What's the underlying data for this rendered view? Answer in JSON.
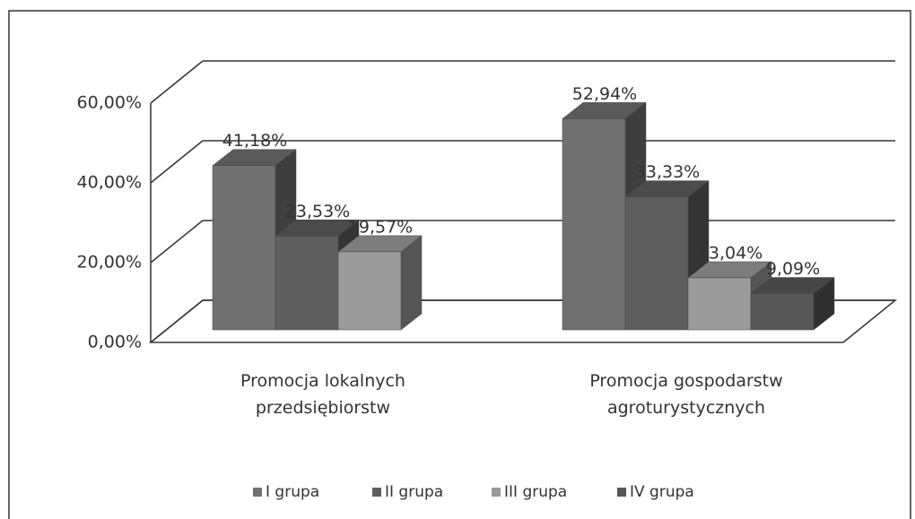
{
  "chart_data": {
    "type": "bar3d",
    "categories": [
      "Promocja lokalnych przedsiębiorstw",
      "Promocja gospodarstw agroturystycznych"
    ],
    "series": [
      {
        "name": "I grupa",
        "color": "#707070",
        "values": [
          41.18,
          52.94
        ],
        "value_labels": [
          "41,18%",
          "52,94%"
        ]
      },
      {
        "name": "II grupa",
        "color": "#5e5e5e",
        "values": [
          23.53,
          33.33
        ],
        "value_labels": [
          "23,53%",
          "33,33%"
        ]
      },
      {
        "name": "III grupa",
        "color": "#9b9b9b",
        "values": [
          19.57,
          13.04
        ],
        "value_labels": [
          "19,57%",
          "13,04%"
        ]
      },
      {
        "name": "IV grupa",
        "color": "#575757",
        "values": [
          null,
          9.09
        ],
        "value_labels": [
          null,
          "9,09%"
        ]
      }
    ],
    "ylim": [
      0,
      60
    ],
    "yticks": [
      {
        "value": 0,
        "label": "0,00%"
      },
      {
        "value": 20,
        "label": "20,00%"
      },
      {
        "value": 40,
        "label": "40,00%"
      },
      {
        "value": 60,
        "label": "60,00%"
      }
    ],
    "grid": true,
    "legend": "bottom"
  }
}
